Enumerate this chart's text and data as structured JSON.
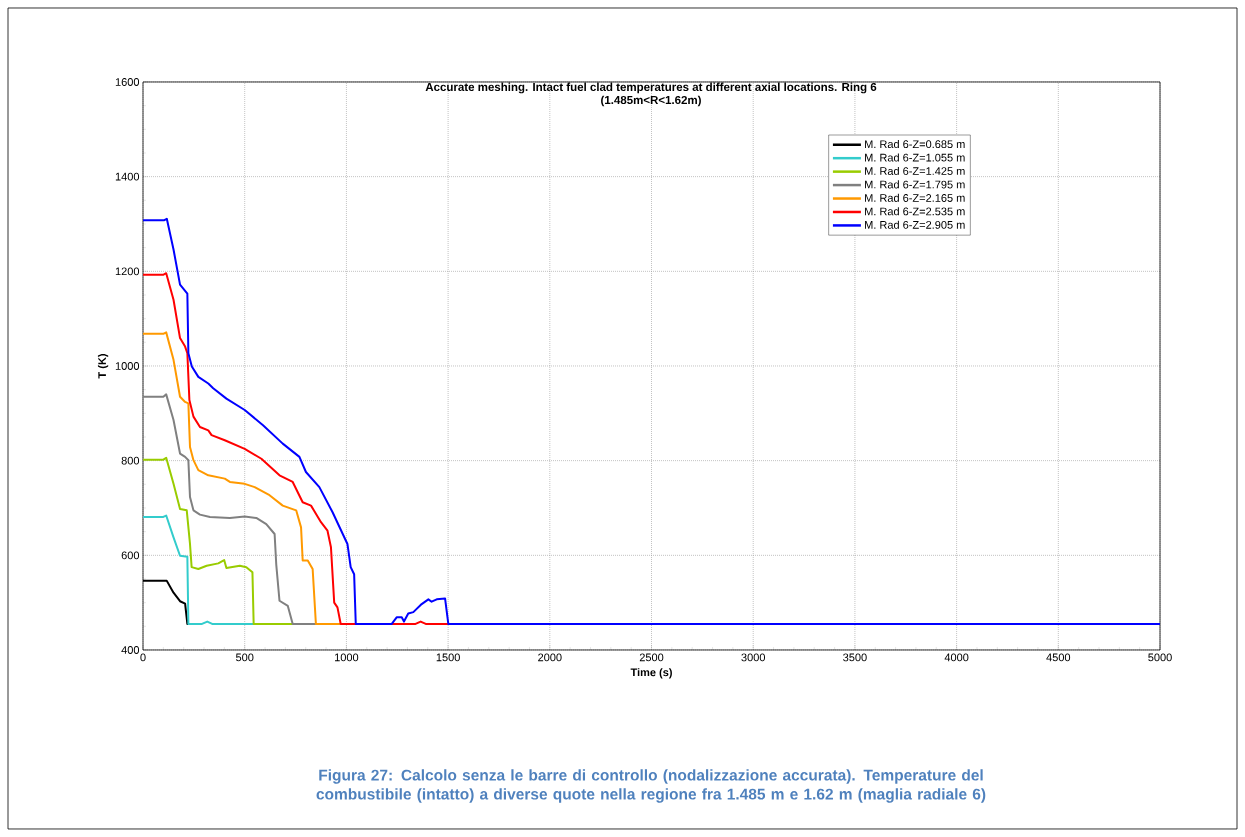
{
  "chart_data": {
    "type": "line",
    "title": "Accurate meshing. Intact fuel clad temperatures at different axial locations. Ring 6",
    "subtitle": "(1.485m<R<1.62m)",
    "xlabel": "Time (s)",
    "ylabel": "T (K)",
    "annotations": [
      "Figura 27: Calcolo senza le barre di controllo (nodalizzazione accurata). Temperature del combustibile (intatto) a diverse quote nella regione fra 1.485 m e 1.62 m (maglia radiale 6)"
    ],
    "xlim": [
      0,
      5000
    ],
    "ylim": [
      400,
      1600
    ],
    "xticks": [
      0,
      500,
      1000,
      1500,
      2000,
      2500,
      3000,
      3500,
      4000,
      4500,
      5000
    ],
    "yticks": [
      400,
      600,
      800,
      1000,
      1200,
      1400,
      1600
    ],
    "grid": true,
    "legend": "top right",
    "series": [
      {
        "name": "M. Rad 6-Z=0.685 m",
        "color": "#000000",
        "x": [
          0,
          117,
          150,
          182,
          207,
          218,
          240
        ],
        "values": [
          546,
          546,
          521,
          503,
          498,
          455,
          455
        ]
      },
      {
        "name": "M. Rad 6-Z=1.055 m",
        "color": "#33cccc",
        "x": [
          0,
          100,
          114,
          150,
          182,
          218,
          223,
          290,
          316,
          340,
          544
        ],
        "values": [
          681,
          681,
          684,
          638,
          599,
          597,
          455,
          455,
          460,
          455,
          455
        ]
      },
      {
        "name": "M. Rad 6-Z=1.425 m",
        "color": "#99cc00",
        "x": [
          0,
          100,
          114,
          150,
          182,
          215,
          231,
          239,
          272,
          313,
          370,
          399,
          410,
          476,
          508,
          538,
          544,
          736
        ],
        "values": [
          802,
          802,
          806,
          751,
          698,
          695,
          624,
          575,
          571,
          578,
          583,
          590,
          573,
          578,
          575,
          564,
          455,
          455
        ]
      },
      {
        "name": "M. Rad 6-Z=1.795 m",
        "color": "#808080",
        "x": [
          0,
          100,
          114,
          150,
          182,
          207,
          223,
          231,
          248,
          280,
          329,
          427,
          500,
          557,
          606,
          647,
          655,
          671,
          712,
          736,
          850
        ],
        "values": [
          935,
          935,
          940,
          886,
          815,
          808,
          801,
          723,
          695,
          686,
          681,
          679,
          682,
          679,
          666,
          645,
          581,
          504,
          493,
          455,
          455
        ]
      },
      {
        "name": "M. Rad 6-Z=2.165 m",
        "color": "#ff9900",
        "x": [
          0,
          100,
          114,
          150,
          182,
          207,
          223,
          231,
          248,
          272,
          321,
          402,
          427,
          500,
          549,
          622,
          687,
          753,
          777,
          785,
          810,
          834,
          850,
          972
        ],
        "values": [
          1068,
          1068,
          1071,
          1013,
          935,
          924,
          921,
          829,
          801,
          780,
          769,
          762,
          755,
          751,
          744,
          727,
          705,
          695,
          659,
          589,
          589,
          571,
          455,
          455
        ]
      },
      {
        "name": "M. Rad 6-Z=2.535 m",
        "color": "#ff0000",
        "x": [
          0,
          101,
          114,
          150,
          182,
          207,
          218,
          228,
          248,
          280,
          321,
          337,
          402,
          500,
          582,
          671,
          736,
          785,
          826,
          875,
          907,
          924,
          940,
          956,
          972,
          1340,
          1365,
          1390,
          1500
        ],
        "values": [
          1193,
          1193,
          1196,
          1140,
          1059,
          1041,
          1027,
          928,
          893,
          871,
          864,
          854,
          843,
          825,
          804,
          769,
          755,
          712,
          705,
          670,
          652,
          617,
          500,
          490,
          455,
          455,
          460,
          455,
          455
        ]
      },
      {
        "name": "M. Rad 6-Z=2.905 m",
        "color": "#0000ff",
        "x": [
          0,
          105,
          117,
          150,
          182,
          218,
          223,
          240,
          272,
          321,
          345,
          410,
          500,
          590,
          687,
          769,
          801,
          867,
          932,
          1005,
          1021,
          1038,
          1046,
          1223,
          1247,
          1272,
          1283,
          1304,
          1329,
          1370,
          1403,
          1419,
          1444,
          1485,
          1501,
          5000
        ],
        "values": [
          1308,
          1308,
          1311,
          1246,
          1172,
          1153,
          1027,
          999,
          977,
          963,
          953,
          931,
          907,
          875,
          836,
          808,
          776,
          744,
          691,
          624,
          575,
          560,
          455,
          455,
          469,
          469,
          460,
          477,
          480,
          497,
          507,
          502,
          507,
          509,
          455,
          455
        ]
      }
    ]
  }
}
